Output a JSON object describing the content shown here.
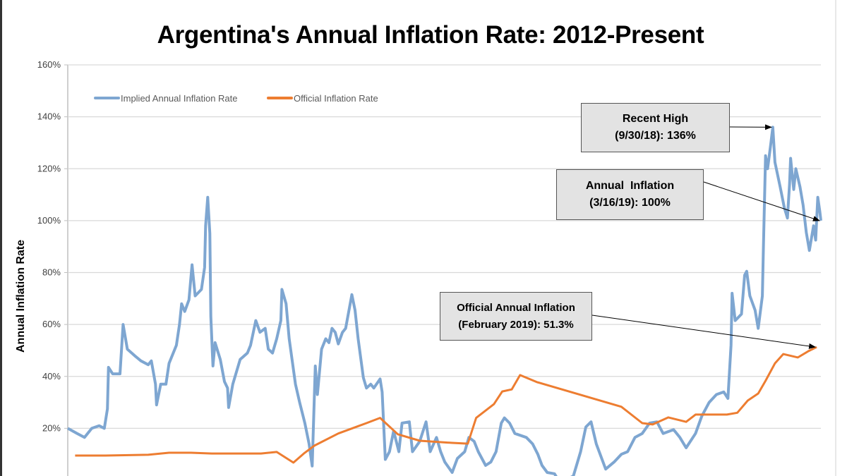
{
  "chart_data": {
    "type": "line",
    "title": "Argentina's Annual Inflation Rate: 2012-Present",
    "ylabel": "Annual Inflation Rate",
    "xlabel": "",
    "xlim": [
      2012.0,
      2019.21
    ],
    "ylim": [
      0,
      160
    ],
    "yticks": [
      "160%",
      "140%",
      "120%",
      "100%",
      "80%",
      "60%",
      "40%",
      "20%"
    ],
    "grid": true,
    "legend": "top-left",
    "series": [
      {
        "name": "Implied Annual Inflation Rate",
        "color": "#7ea6d1",
        "points": [
          [
            2012.0,
            20
          ],
          [
            2012.09,
            18
          ],
          [
            2012.16,
            16.5
          ],
          [
            2012.23,
            20
          ],
          [
            2012.3,
            21
          ],
          [
            2012.35,
            20
          ],
          [
            2012.38,
            27.5
          ],
          [
            2012.39,
            43.5
          ],
          [
            2012.43,
            41
          ],
          [
            2012.5,
            41
          ],
          [
            2012.53,
            60
          ],
          [
            2012.57,
            50.5
          ],
          [
            2012.64,
            48
          ],
          [
            2012.7,
            46
          ],
          [
            2012.77,
            44.5
          ],
          [
            2012.8,
            46
          ],
          [
            2012.84,
            37
          ],
          [
            2012.85,
            29
          ],
          [
            2012.89,
            37
          ],
          [
            2012.94,
            37
          ],
          [
            2012.97,
            45
          ],
          [
            2013.04,
            52
          ],
          [
            2013.07,
            60
          ],
          [
            2013.09,
            68
          ],
          [
            2013.12,
            65
          ],
          [
            2013.16,
            69.5
          ],
          [
            2013.19,
            83
          ],
          [
            2013.22,
            71
          ],
          [
            2013.28,
            73.5
          ],
          [
            2013.31,
            82
          ],
          [
            2013.32,
            98
          ],
          [
            2013.34,
            109
          ],
          [
            2013.36,
            95
          ],
          [
            2013.37,
            63
          ],
          [
            2013.39,
            44
          ],
          [
            2013.41,
            53
          ],
          [
            2013.46,
            46.5
          ],
          [
            2013.5,
            38
          ],
          [
            2013.53,
            35.5
          ],
          [
            2013.54,
            28
          ],
          [
            2013.58,
            37
          ],
          [
            2013.65,
            46.5
          ],
          [
            2013.72,
            49
          ],
          [
            2013.75,
            52
          ],
          [
            2013.8,
            61.5
          ],
          [
            2013.84,
            57
          ],
          [
            2013.89,
            58.5
          ],
          [
            2013.92,
            50.5
          ],
          [
            2013.96,
            49
          ],
          [
            2014.0,
            54.5
          ],
          [
            2014.04,
            61.5
          ],
          [
            2014.05,
            73.5
          ],
          [
            2014.09,
            68
          ],
          [
            2014.12,
            54.5
          ],
          [
            2014.18,
            37
          ],
          [
            2014.22,
            30
          ],
          [
            2014.27,
            22
          ],
          [
            2014.31,
            14
          ],
          [
            2014.34,
            5.5
          ],
          [
            2014.37,
            44
          ],
          [
            2014.39,
            33
          ],
          [
            2014.43,
            50.5
          ],
          [
            2014.47,
            54.5
          ],
          [
            2014.5,
            53
          ],
          [
            2014.53,
            58.5
          ],
          [
            2014.56,
            57
          ],
          [
            2014.59,
            52.5
          ],
          [
            2014.63,
            57
          ],
          [
            2014.66,
            58.5
          ],
          [
            2014.72,
            71.5
          ],
          [
            2014.75,
            65.5
          ],
          [
            2014.78,
            54.5
          ],
          [
            2014.83,
            39.5
          ],
          [
            2014.86,
            35.5
          ],
          [
            2014.9,
            37
          ],
          [
            2014.93,
            35.5
          ],
          [
            2014.99,
            39
          ],
          [
            2015.01,
            34
          ],
          [
            2015.04,
            8
          ],
          [
            2015.08,
            11
          ],
          [
            2015.12,
            19
          ],
          [
            2015.17,
            11
          ],
          [
            2015.2,
            22
          ],
          [
            2015.27,
            22.5
          ],
          [
            2015.3,
            11
          ],
          [
            2015.37,
            15
          ],
          [
            2015.43,
            22.5
          ],
          [
            2015.47,
            11
          ],
          [
            2015.53,
            16.5
          ],
          [
            2015.57,
            11
          ],
          [
            2015.61,
            7
          ],
          [
            2015.68,
            3
          ],
          [
            2015.73,
            8.4
          ],
          [
            2015.8,
            11
          ],
          [
            2015.84,
            16.5
          ],
          [
            2015.89,
            15
          ],
          [
            2015.93,
            11
          ],
          [
            2016.0,
            5.7
          ],
          [
            2016.05,
            7
          ],
          [
            2016.1,
            11
          ],
          [
            2016.15,
            22
          ],
          [
            2016.18,
            24
          ],
          [
            2016.23,
            22
          ],
          [
            2016.28,
            18
          ],
          [
            2016.39,
            16.5
          ],
          [
            2016.45,
            14
          ],
          [
            2016.5,
            10
          ],
          [
            2016.54,
            5.7
          ],
          [
            2016.59,
            3
          ],
          [
            2016.66,
            2.5
          ],
          [
            2016.69,
            0.5
          ],
          [
            2016.76,
            0
          ],
          [
            2016.84,
            1.6
          ],
          [
            2016.91,
            11
          ],
          [
            2016.96,
            20.5
          ],
          [
            2017.01,
            22.5
          ],
          [
            2017.06,
            14
          ],
          [
            2017.15,
            4.3
          ],
          [
            2017.23,
            7
          ],
          [
            2017.3,
            10
          ],
          [
            2017.36,
            11
          ],
          [
            2017.43,
            16.5
          ],
          [
            2017.5,
            18
          ],
          [
            2017.57,
            22
          ],
          [
            2017.64,
            22.5
          ],
          [
            2017.7,
            18
          ],
          [
            2017.8,
            19.5
          ],
          [
            2017.86,
            16.5
          ],
          [
            2017.92,
            12.5
          ],
          [
            2018.01,
            18
          ],
          [
            2018.07,
            24.7
          ],
          [
            2018.14,
            30
          ],
          [
            2018.21,
            33
          ],
          [
            2018.28,
            34
          ],
          [
            2018.32,
            31.5
          ],
          [
            2018.35,
            52
          ],
          [
            2018.36,
            72
          ],
          [
            2018.39,
            61.5
          ],
          [
            2018.45,
            64
          ],
          [
            2018.48,
            79
          ],
          [
            2018.5,
            80.5
          ],
          [
            2018.53,
            71
          ],
          [
            2018.58,
            65.5
          ],
          [
            2018.61,
            58.5
          ],
          [
            2018.65,
            71
          ],
          [
            2018.66,
            90
          ],
          [
            2018.68,
            125
          ],
          [
            2018.7,
            120
          ],
          [
            2018.73,
            129.5
          ],
          [
            2018.75,
            136
          ],
          [
            2018.77,
            122.5
          ],
          [
            2018.82,
            113
          ],
          [
            2018.86,
            105
          ],
          [
            2018.89,
            101
          ],
          [
            2018.91,
            114
          ],
          [
            2018.92,
            124
          ],
          [
            2018.95,
            112
          ],
          [
            2018.97,
            120
          ],
          [
            2019.01,
            113
          ],
          [
            2019.04,
            106
          ],
          [
            2019.07,
            95.5
          ],
          [
            2019.1,
            88.5
          ],
          [
            2019.14,
            98
          ],
          [
            2019.16,
            92.5
          ],
          [
            2019.18,
            109
          ],
          [
            2019.2,
            103.5
          ],
          [
            2019.21,
            100
          ]
        ]
      },
      {
        "name": "Official Inflation Rate",
        "color": "#ed7d31",
        "points": [
          [
            2012.07,
            9.5
          ],
          [
            2012.36,
            9.5
          ],
          [
            2012.77,
            9.8
          ],
          [
            2012.97,
            10.6
          ],
          [
            2013.18,
            10.6
          ],
          [
            2013.38,
            10.3
          ],
          [
            2013.65,
            10.3
          ],
          [
            2013.85,
            10.3
          ],
          [
            2014.0,
            10.9
          ],
          [
            2014.16,
            6.8
          ],
          [
            2014.26,
            10.3
          ],
          [
            2014.36,
            13.3
          ],
          [
            2014.59,
            18
          ],
          [
            2014.86,
            22
          ],
          [
            2014.99,
            24
          ],
          [
            2015.16,
            17.7
          ],
          [
            2015.37,
            15.2
          ],
          [
            2015.68,
            14.4
          ],
          [
            2015.83,
            14.1
          ],
          [
            2015.91,
            24
          ],
          [
            2016.08,
            29.3
          ],
          [
            2016.16,
            34.2
          ],
          [
            2016.25,
            35
          ],
          [
            2016.33,
            40.5
          ],
          [
            2016.49,
            37.8
          ],
          [
            2017.3,
            28.3
          ],
          [
            2017.5,
            22
          ],
          [
            2017.6,
            21.5
          ],
          [
            2017.75,
            24.2
          ],
          [
            2017.92,
            22.5
          ],
          [
            2018.01,
            25.3
          ],
          [
            2018.31,
            25.3
          ],
          [
            2018.41,
            26
          ],
          [
            2018.51,
            30.7
          ],
          [
            2018.61,
            33.4
          ],
          [
            2018.68,
            38.3
          ],
          [
            2018.77,
            45
          ],
          [
            2018.85,
            48.6
          ],
          [
            2018.99,
            47.3
          ],
          [
            2019.09,
            49.7
          ],
          [
            2019.17,
            51.3
          ]
        ]
      }
    ],
    "annotations": [
      {
        "line1": "Recent High",
        "line2": "(9/30/18): 136%",
        "target": [
          2018.75,
          136
        ]
      },
      {
        "line1": "Annual  Inflation",
        "line2": "(3/16/19): 100%",
        "target": [
          2019.21,
          100
        ]
      },
      {
        "line1": "Official Annual Inflation",
        "line2": "(February 2019): 51.3%",
        "target": [
          2019.17,
          51.3
        ]
      }
    ]
  }
}
